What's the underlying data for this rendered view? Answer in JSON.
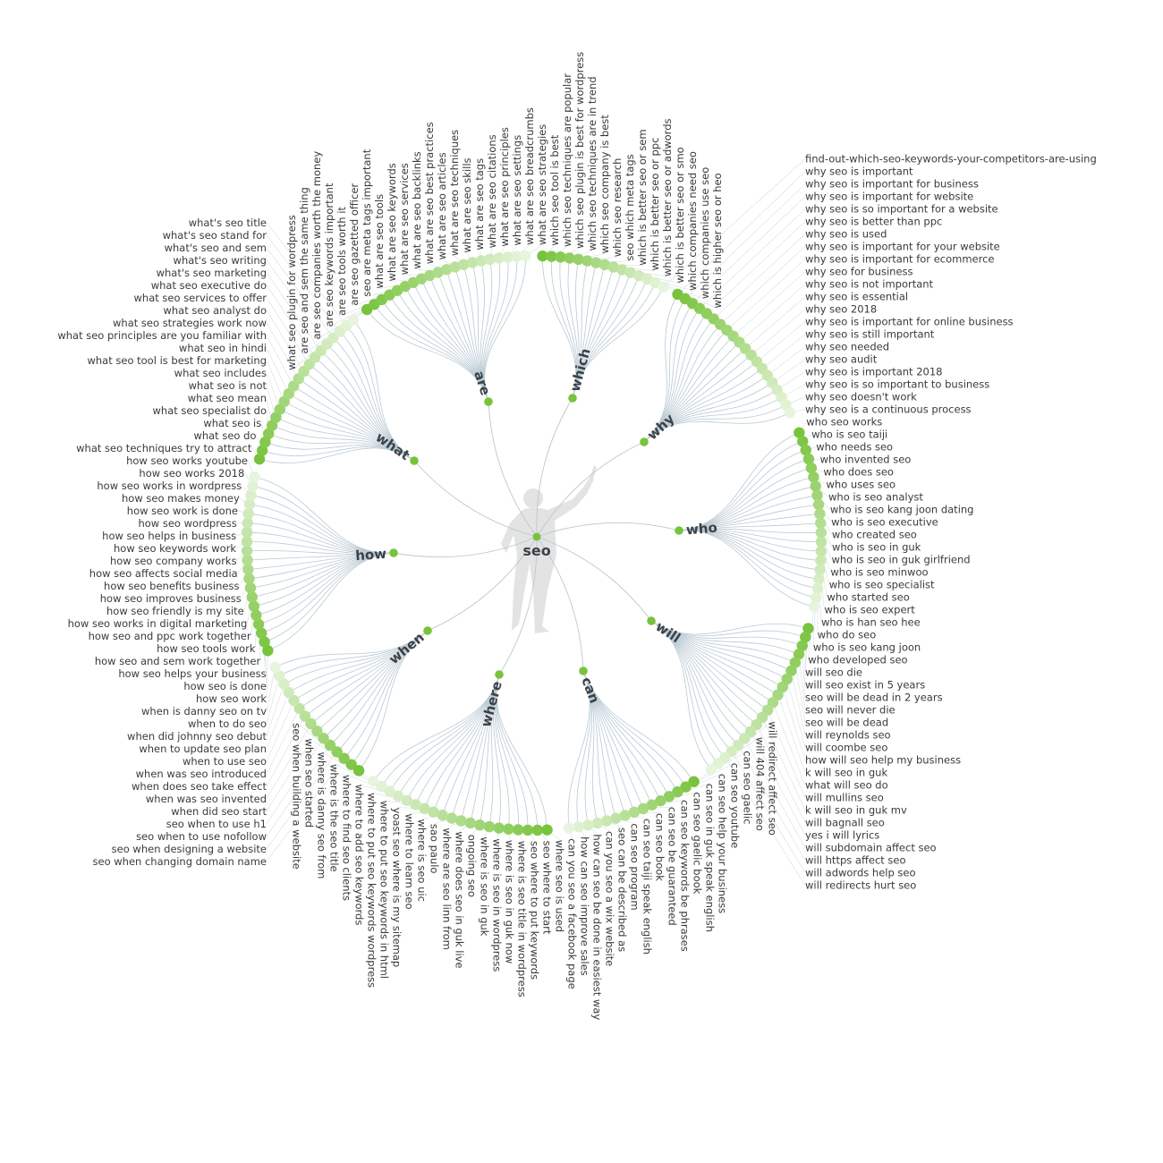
{
  "root": {
    "label": "seo",
    "icon": "person-silhouette-icon"
  },
  "colors": {
    "dark": "#78c33c",
    "light": "#e8f5de",
    "link": "#b9c9d3",
    "text": "#3a3a3a"
  },
  "branches": [
    {
      "label": "what",
      "leaves": [
        "what seo techniques try to attract",
        "what seo do",
        "what seo is",
        "what seo specialist do",
        "what seo mean",
        "what seo is not",
        "what seo includes",
        "what seo tool is best for marketing",
        "what seo in hindi",
        "what seo principles are you familiar with",
        "what seo strategies work now",
        "what seo analyst do",
        "what seo services to offer",
        "what seo executive do",
        "what's seo marketing",
        "what's seo writing",
        "what's seo and sem",
        "what's seo stand for",
        "what's seo title",
        "what seo plugin for wordpress"
      ]
    },
    {
      "label": "are",
      "leaves": [
        "are seo and sem the same thing",
        "are seo companies worth the money",
        "are seo keywords important",
        "are seo tools worth it",
        "are seo gazetted officer",
        "seo are meta tags important",
        "what are seo tools",
        "what are seo keywords",
        "what are seo services",
        "what are seo backlinks",
        "what are seo best practices",
        "what are seo articles",
        "what are seo techniques",
        "what are seo skills",
        "what are seo tags",
        "what are seo citations",
        "what are seo principles",
        "what are seo settings",
        "what are seo breadcrumbs",
        "what are seo strategies"
      ]
    },
    {
      "label": "which",
      "leaves": [
        "which seo tool is best",
        "which seo techniques are popular",
        "which seo plugin is best for wordpress",
        "which seo techniques are in trend",
        "which seo company is best",
        "which seo research",
        "seo which meta tags",
        "which is better seo or sem",
        "which is better seo or ppc",
        "which is better seo or adwords",
        "which is better seo or smo",
        "which companies need seo",
        "which companies use seo",
        "which is higher seo or heo",
        "find-out-which-seo-keywords-your-competitors-are-using"
      ]
    },
    {
      "label": "why",
      "leaves": [
        "why seo is important",
        "why seo is important for business",
        "why seo is important for website",
        "why seo is so important for a website",
        "why seo is better than ppc",
        "why seo is used",
        "why seo is important for your website",
        "why seo is important for ecommerce",
        "why seo for business",
        "why seo is not important",
        "why seo is essential",
        "why seo 2018",
        "why seo is important for online business",
        "why seo is still important",
        "why seo needed",
        "why seo audit",
        "why seo is important 2018",
        "why seo is so important to business",
        "why seo doesn't work",
        "why seo is a continuous process"
      ]
    },
    {
      "label": "who",
      "leaves": [
        "who seo works",
        "who is seo taiji",
        "who needs seo",
        "who invented seo",
        "who does seo",
        "who uses seo",
        "who is seo analyst",
        "who is seo kang joon dating",
        "who is seo executive",
        "who created seo",
        "who is seo in guk",
        "who is seo in guk girlfriend",
        "who is seo minwoo",
        "who is seo specialist",
        "who started seo",
        "who is seo expert",
        "who is han seo hee",
        "who do seo",
        "who is seo kang joon",
        "who developed seo"
      ]
    },
    {
      "label": "will",
      "leaves": [
        "will seo die",
        "will seo exist in 5 years",
        "seo will be dead in 2 years",
        "seo will never die",
        "seo will be dead",
        "will reynolds seo",
        "will coombe seo",
        "how will seo help my business",
        "k will seo in guk",
        "what will seo do",
        "will mullins seo",
        "k will seo in guk mv",
        "will bagnall seo",
        "yes i will lyrics",
        "will subdomain affect seo",
        "will https affect seo",
        "will adwords help seo",
        "will redirects hurt seo",
        "will redirect affect seo",
        "will 404 affect seo"
      ]
    },
    {
      "label": "can",
      "leaves": [
        "can seo gaelic",
        "can seo youtube",
        "can seo help your business",
        "can seo in guk speak english",
        "can seo gaelic book",
        "can seo keywords be phrases",
        "can seo be guaranteed",
        "can seo book",
        "can seo taiji speak english",
        "can seo program",
        "seo can be described as",
        "can you seo a wix website",
        "how can seo be done in easiest way",
        "how can seo improve sales",
        "can you seo a facebook page"
      ]
    },
    {
      "label": "where",
      "leaves": [
        "where seo is used",
        "seo where to start",
        "seo where to put keywords",
        "where is seo title in wordpress",
        "where is seo in guk now",
        "where is seo in wordpress",
        "where is seo in guk",
        "ongoing seo",
        "where does seo in guk live",
        "where are seo linn from",
        "sao paulo",
        "where is seo uic",
        "where to learn seo",
        "yoast seo where is my sitemap",
        "where to put seo keywords in html",
        "where to put seo keywords wordpress",
        "where to add seo keywords",
        "where to find seo clients",
        "where is the seo title",
        "where is danny seo from"
      ]
    },
    {
      "label": "when",
      "leaves": [
        "when seo started",
        "seo when building a website",
        "seo when changing domain name",
        "seo when designing a website",
        "seo when to use nofollow",
        "seo when to use h1",
        "when did seo start",
        "when was seo invented",
        "when does seo take effect",
        "when was seo introduced",
        "when to use seo",
        "when to update seo plan",
        "when did johnny seo debut",
        "when to do seo",
        "when is danny seo on tv"
      ]
    },
    {
      "label": "how",
      "leaves": [
        "how seo work",
        "how seo is done",
        "how seo helps your business",
        "how seo and sem work together",
        "how seo tools work",
        "how seo and ppc work together",
        "how seo works in digital marketing",
        "how seo friendly is my site",
        "how seo improves business",
        "how seo benefits business",
        "how seo affects social media",
        "how seo company works",
        "how seo keywords work",
        "how seo helps in business",
        "how seo wordpress",
        "how seo work is done",
        "how seo makes money",
        "how seo works in wordpress",
        "how seo works 2018",
        "how seo works youtube"
      ]
    }
  ]
}
